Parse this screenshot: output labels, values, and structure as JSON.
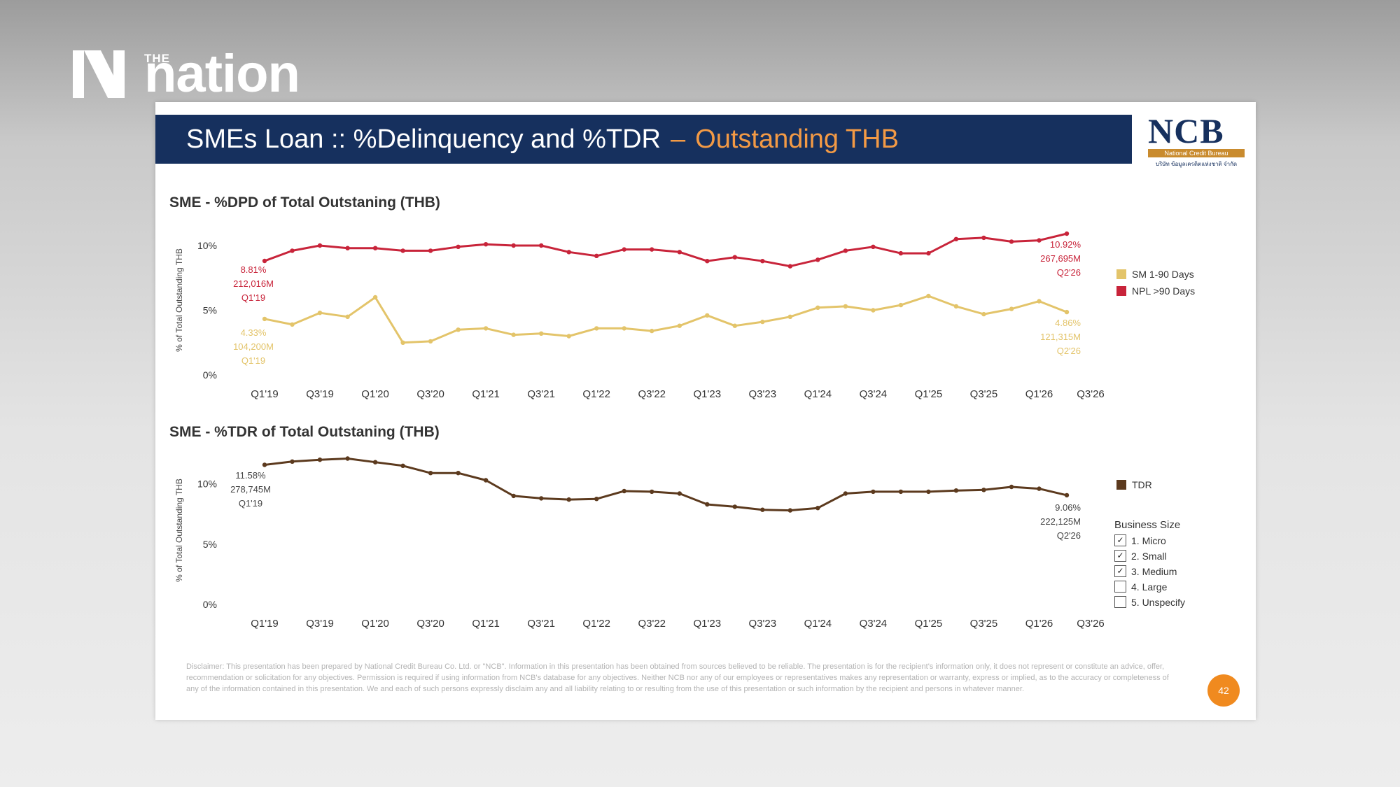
{
  "brand": {
    "prefix": "THE",
    "name": "nation",
    "icon": "nation-n-logo-icon"
  },
  "slide": {
    "title": "SMEs Loan :: %Delinquency and %TDR",
    "title_separator": "–",
    "title_accent": "Outstanding THB",
    "logo": {
      "name": "NCB",
      "band": "National Credit Bureau",
      "subtext": "บริษัท ข้อมูลเครดิตแห่งชาติ จำกัด"
    },
    "disclaimer": "Disclaimer: This presentation has been prepared by National Credit Bureau Co. Ltd. or \"NCB\". Information in this presentation has been obtained from sources believed to be reliable. The presentation is for the recipient's information only, it does not represent or constitute an advice, offer, recommendation or solicitation for any objectives. Permission is required if using information from NCB's database for any objectives. Neither NCB nor any of our employees or representatives makes any representation or warranty, express or implied, as to the accuracy or completeness of any of the information contained in this presentation. We and each of such persons expressly disclaim any and all liability relating to or resulting from the use of this presentation or such information by the recipient and persons in whatever manner.",
    "page_number": "42",
    "business_size": {
      "title": "Business Size",
      "items": [
        {
          "label": "1. Micro",
          "checked": true
        },
        {
          "label": "2. Small",
          "checked": true
        },
        {
          "label": "3. Medium",
          "checked": true
        },
        {
          "label": "4. Large",
          "checked": false
        },
        {
          "label": "5. Unspecify",
          "checked": false
        }
      ]
    }
  },
  "colors": {
    "sm": "#e3c46a",
    "npl": "#c8243a",
    "tdr": "#5c3a1e",
    "title_bar": "#16305e",
    "accent": "#f39a45"
  },
  "chart_data": [
    {
      "type": "line",
      "title": "SME - %DPD of Total Outstaning (THB)",
      "ylabel": "% of Total Outstanding THB",
      "xlabel": "",
      "ylim": [
        0,
        12
      ],
      "yticks": [
        "10%",
        "5%",
        "0%"
      ],
      "ytick_values": [
        10,
        5,
        0
      ],
      "tick_labels": [
        "Q1'19",
        "Q3'19",
        "Q1'20",
        "Q3'20",
        "Q1'21",
        "Q3'21",
        "Q1'22",
        "Q3'22",
        "Q1'23",
        "Q3'23",
        "Q1'24",
        "Q3'24",
        "Q1'25",
        "Q3'25",
        "Q1'26",
        "Q3'26"
      ],
      "categories": [
        "Q1'19",
        "Q2'19",
        "Q3'19",
        "Q4'19",
        "Q1'20",
        "Q2'20",
        "Q3'20",
        "Q4'20",
        "Q1'21",
        "Q2'21",
        "Q3'21",
        "Q4'21",
        "Q1'22",
        "Q2'22",
        "Q3'22",
        "Q4'22",
        "Q1'23",
        "Q2'23",
        "Q3'23",
        "Q4'23",
        "Q1'24",
        "Q2'24",
        "Q3'24",
        "Q4'24",
        "Q1'25",
        "Q2'25",
        "Q3'25",
        "Q4'25",
        "Q1'26",
        "Q2'26"
      ],
      "legend_placement": "right",
      "series": [
        {
          "name": "SM 1-90 Days",
          "color": "#e3c46a",
          "values": [
            4.33,
            3.9,
            4.8,
            4.5,
            6.0,
            2.5,
            2.6,
            3.5,
            3.6,
            3.1,
            3.2,
            3.0,
            3.6,
            3.6,
            3.4,
            3.8,
            4.6,
            3.8,
            4.1,
            4.5,
            5.2,
            5.3,
            5.0,
            5.4,
            6.1,
            5.3,
            4.7,
            5.1,
            5.7,
            4.86
          ]
        },
        {
          "name": "NPL >90 Days",
          "color": "#c8243a",
          "values": [
            8.81,
            9.6,
            10.0,
            9.8,
            9.8,
            9.6,
            9.6,
            9.9,
            10.1,
            10.0,
            10.0,
            9.5,
            9.2,
            9.7,
            9.7,
            9.5,
            8.8,
            9.1,
            8.8,
            8.4,
            8.9,
            9.6,
            9.9,
            9.4,
            9.4,
            10.5,
            10.6,
            10.3,
            10.4,
            10.92
          ]
        }
      ],
      "annotations": [
        {
          "lines": [
            "8.81%",
            "212,016M",
            "Q1'19"
          ],
          "color": "#c8243a"
        },
        {
          "lines": [
            "4.33%",
            "104,200M",
            "Q1'19"
          ],
          "color": "#e3c46a"
        },
        {
          "lines": [
            "10.92%",
            "267,695M",
            "Q2'26"
          ],
          "color": "#c8243a"
        },
        {
          "lines": [
            "4.86%",
            "121,315M",
            "Q2'26"
          ],
          "color": "#e3c46a"
        }
      ]
    },
    {
      "type": "line",
      "title": "SME - %TDR of Total Outstaning (THB)",
      "ylabel": "% of Total Outstanding THB",
      "xlabel": "",
      "ylim": [
        0,
        13
      ],
      "yticks": [
        "10%",
        "5%",
        "0%"
      ],
      "ytick_values": [
        10,
        5,
        0
      ],
      "tick_labels": [
        "Q1'19",
        "Q3'19",
        "Q1'20",
        "Q3'20",
        "Q1'21",
        "Q3'21",
        "Q1'22",
        "Q3'22",
        "Q1'23",
        "Q3'23",
        "Q1'24",
        "Q3'24",
        "Q1'25",
        "Q3'25",
        "Q1'26",
        "Q3'26"
      ],
      "categories": [
        "Q1'19",
        "Q2'19",
        "Q3'19",
        "Q4'19",
        "Q1'20",
        "Q2'20",
        "Q3'20",
        "Q4'20",
        "Q1'21",
        "Q2'21",
        "Q3'21",
        "Q4'21",
        "Q1'22",
        "Q2'22",
        "Q3'22",
        "Q4'22",
        "Q1'23",
        "Q2'23",
        "Q3'23",
        "Q4'23",
        "Q1'24",
        "Q2'24",
        "Q3'24",
        "Q4'24",
        "Q1'25",
        "Q2'25",
        "Q3'25",
        "Q4'25",
        "Q1'26",
        "Q2'26"
      ],
      "legend_placement": "right",
      "series": [
        {
          "name": "TDR",
          "color": "#5c3a1e",
          "values": [
            11.58,
            11.85,
            12.0,
            12.1,
            11.8,
            11.5,
            10.9,
            10.9,
            10.3,
            9.0,
            8.8,
            8.7,
            8.75,
            9.4,
            9.35,
            9.2,
            8.3,
            8.1,
            7.85,
            7.8,
            8.0,
            9.2,
            9.35,
            9.35,
            9.35,
            9.45,
            9.5,
            9.75,
            9.6,
            9.06
          ]
        }
      ],
      "annotations": [
        {
          "lines": [
            "11.58%",
            "278,745M",
            "Q1'19"
          ],
          "color": "#444444"
        },
        {
          "lines": [
            "9.06%",
            "222,125M",
            "Q2'26"
          ],
          "color": "#444444"
        }
      ]
    }
  ]
}
